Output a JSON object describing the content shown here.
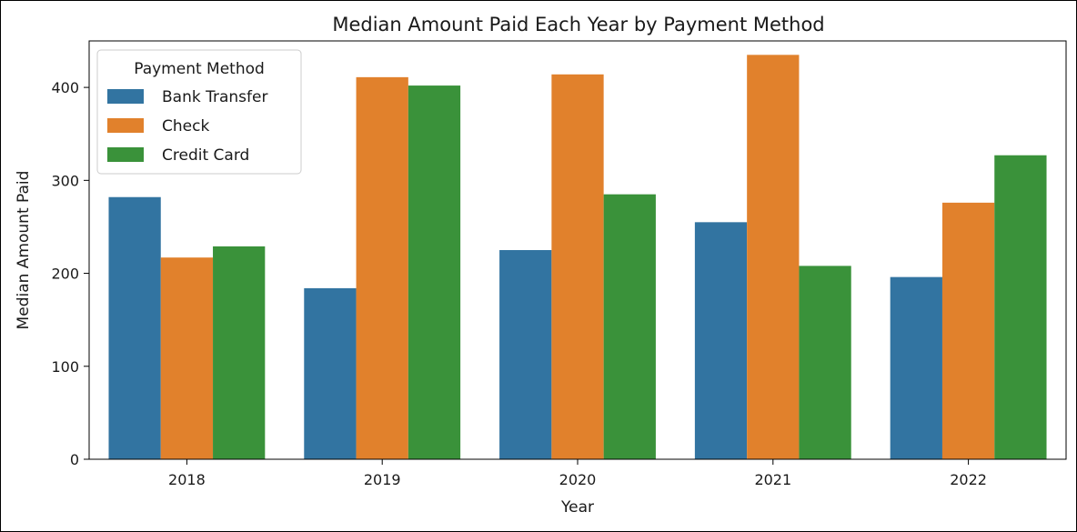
{
  "chart_data": {
    "type": "bar",
    "title": "Median Amount Paid Each Year by Payment Method",
    "xlabel": "Year",
    "ylabel": "Median Amount Paid",
    "categories": [
      "2018",
      "2019",
      "2020",
      "2021",
      "2022"
    ],
    "series": [
      {
        "name": "Bank Transfer",
        "color": "#3274a1",
        "values": [
          282,
          184,
          225,
          255,
          196
        ]
      },
      {
        "name": "Check",
        "color": "#e1812c",
        "values": [
          217,
          411,
          414,
          435,
          276
        ]
      },
      {
        "name": "Credit Card",
        "color": "#3a923a",
        "values": [
          229,
          402,
          285,
          208,
          327
        ]
      }
    ],
    "ylim": [
      0,
      450
    ],
    "yticks": [
      0,
      100,
      200,
      300,
      400
    ],
    "grid": false,
    "legend": {
      "title": "Payment Method",
      "placement": "top-left"
    }
  }
}
